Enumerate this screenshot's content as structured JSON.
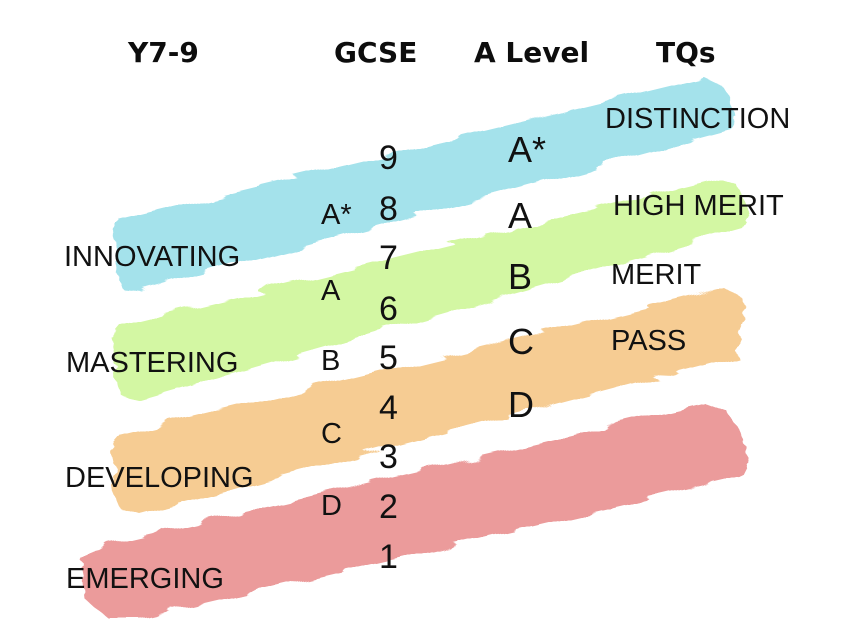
{
  "headers": {
    "ks3": "Y7-9",
    "gcse": "GCSE",
    "alevel": "A Level",
    "tqs": "TQs"
  },
  "stages": [
    "INNOVATING",
    "MASTERING",
    "DEVELOPING",
    "EMERGING"
  ],
  "gcse_numbers": [
    "9",
    "8",
    "7",
    "6",
    "5",
    "4",
    "3",
    "2",
    "1"
  ],
  "old_gcse_grades": [
    "A*",
    "A",
    "B",
    "C",
    "D"
  ],
  "a_level_grades": [
    "A*",
    "A",
    "B",
    "C",
    "D"
  ],
  "tq_grades": [
    "DISTINCTION",
    "HIGH MERIT",
    "MERIT",
    "PASS"
  ],
  "band_colors": {
    "innovating": "#a4e2eb",
    "mastering": "#d3f7a3",
    "developing": "#f6cc93",
    "emerging": "#eb9b9b"
  }
}
